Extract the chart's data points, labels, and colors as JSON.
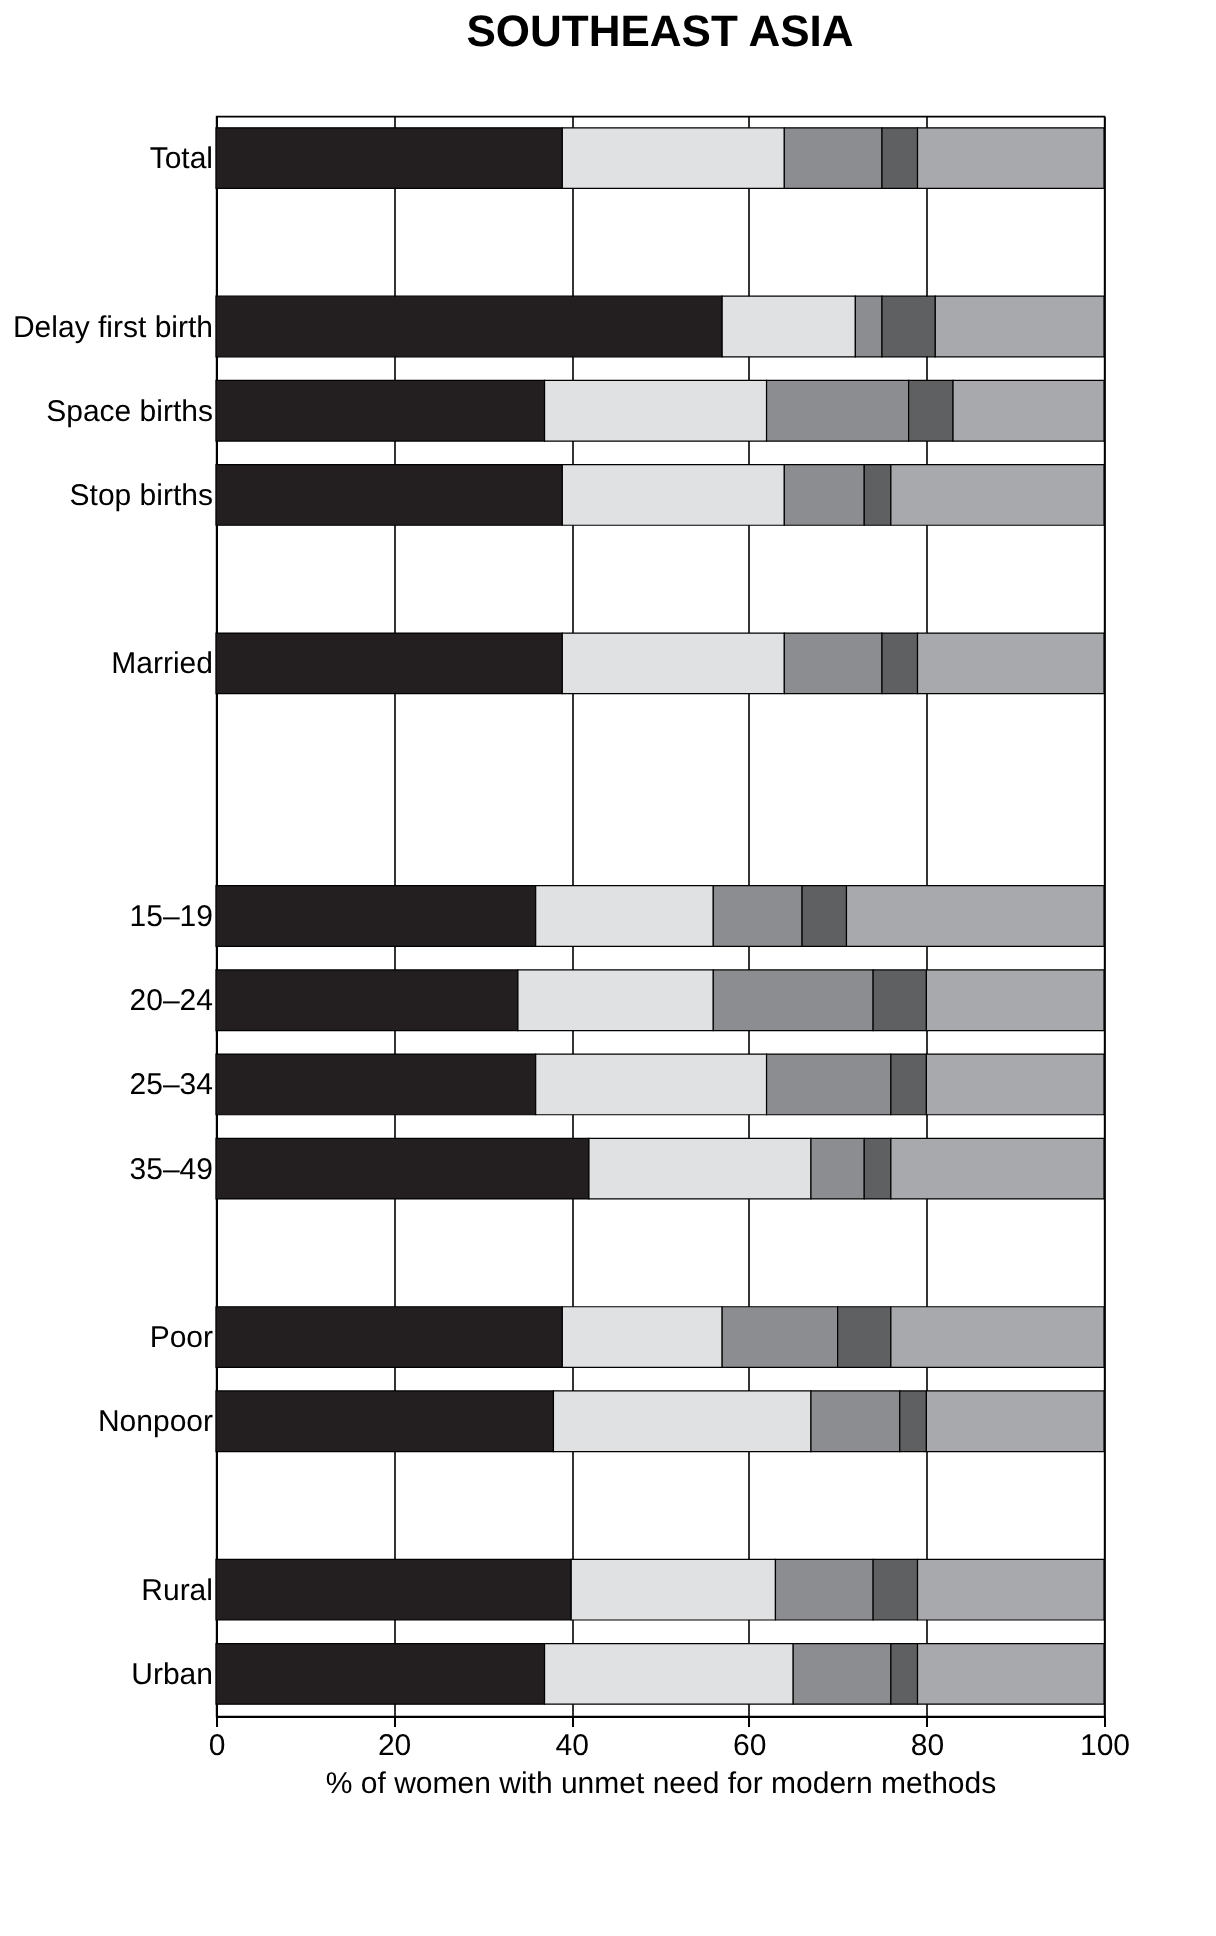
{
  "chart_data": {
    "type": "bar",
    "orientation": "horizontal",
    "stacked": true,
    "title": "SOUTHEAST ASIA",
    "xlabel": "% of women with unmet need for modern methods",
    "categories": [
      "Total",
      null,
      "Delay first birth",
      "Space births",
      "Stop births",
      null,
      "Married",
      null,
      null,
      "15–19",
      "20–24",
      "25–34",
      "35–49",
      null,
      "Poor",
      "Nonpoor",
      null,
      "Rural",
      "Urban"
    ],
    "series": [
      {
        "color": "#231f20",
        "values": [
          39,
          null,
          57,
          37,
          39,
          null,
          39,
          null,
          null,
          36,
          34,
          36,
          42,
          null,
          39,
          38,
          null,
          40,
          37
        ]
      },
      {
        "color": "#e0e1e3",
        "values": [
          25,
          null,
          15,
          25,
          25,
          null,
          25,
          null,
          null,
          20,
          22,
          26,
          25,
          null,
          18,
          29,
          null,
          23,
          28
        ]
      },
      {
        "color": "#8c8d90",
        "values": [
          11,
          null,
          3,
          16,
          9,
          null,
          11,
          null,
          null,
          10,
          18,
          14,
          6,
          null,
          13,
          10,
          null,
          11,
          11
        ]
      },
      {
        "color": "#5f6062",
        "values": [
          4,
          null,
          6,
          5,
          3,
          null,
          4,
          null,
          null,
          5,
          6,
          4,
          3,
          null,
          6,
          3,
          null,
          5,
          3
        ]
      },
      {
        "color": "#a8a9ac",
        "values": [
          21,
          null,
          19,
          17,
          24,
          null,
          21,
          null,
          null,
          29,
          20,
          20,
          24,
          null,
          24,
          20,
          null,
          21,
          21
        ]
      }
    ],
    "xlim": [
      0,
      100
    ],
    "xticks": [
      0,
      20,
      40,
      60,
      80,
      100
    ],
    "grid": "x"
  }
}
